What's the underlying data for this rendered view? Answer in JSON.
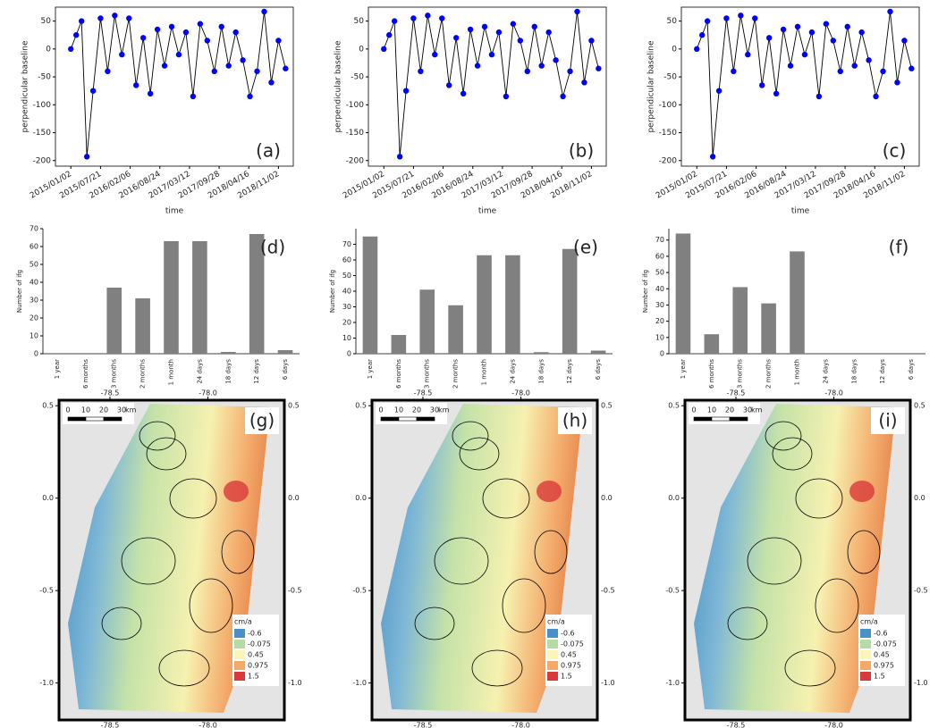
{
  "chart_data": [
    {
      "type": "scatter",
      "panel": "(a)",
      "xlabel": "time",
      "ylabel": "perpendicular baseline",
      "color": "#0000ff",
      "line_color": "#000000",
      "x": [
        "2015/01/02",
        "2015/02/07",
        "2015/03/15",
        "2015/04/20",
        "2015/06/01",
        "2015/07/21",
        "2015/09/07",
        "2015/10/25",
        "2015/12/12",
        "2016/01/29",
        "2016/03/17",
        "2016/05/04",
        "2016/06/21",
        "2016/08/08",
        "2016/09/25",
        "2016/11/12",
        "2016/12/30",
        "2017/02/16",
        "2017/04/05",
        "2017/05/23",
        "2017/07/10",
        "2017/08/27",
        "2017/10/14",
        "2017/12/01",
        "2018/01/18",
        "2018/03/07",
        "2018/04/24",
        "2018/06/11",
        "2018/07/29",
        "2018/09/15",
        "2018/11/02",
        "2018/12/20"
      ],
      "values": [
        0,
        25,
        50,
        -193,
        -75,
        55,
        -40,
        60,
        -10,
        55,
        -65,
        20,
        -80,
        35,
        -30,
        40,
        -10,
        30,
        -85,
        45,
        15,
        -40,
        40,
        -30,
        30,
        -20,
        -85,
        -40,
        67,
        -60,
        15,
        -35
      ],
      "xlim": [
        "2014/09/20",
        "2019/02/10"
      ],
      "xticks": [
        "2015/01/02",
        "2015/07/21",
        "2016/02/06",
        "2016/08/24",
        "2017/03/12",
        "2017/09/28",
        "2018/04/16",
        "2018/11/02"
      ],
      "ylim": [
        -210,
        75
      ],
      "yticks": [
        50,
        0,
        -50,
        -100,
        -150,
        -200
      ]
    },
    {
      "type": "scatter",
      "panel": "(b)",
      "xlabel": "time",
      "ylabel": "perpendicular baseline",
      "color": "#0000ff",
      "line_color": "#000000",
      "x": [
        "2015/01/02",
        "2015/02/07",
        "2015/03/15",
        "2015/04/20",
        "2015/06/01",
        "2015/07/21",
        "2015/09/07",
        "2015/10/25",
        "2015/12/12",
        "2016/01/29",
        "2016/03/17",
        "2016/05/04",
        "2016/06/21",
        "2016/08/08",
        "2016/09/25",
        "2016/11/12",
        "2016/12/30",
        "2017/02/16",
        "2017/04/05",
        "2017/05/23",
        "2017/07/10",
        "2017/08/27",
        "2017/10/14",
        "2017/12/01",
        "2018/01/18",
        "2018/03/07",
        "2018/04/24",
        "2018/06/11",
        "2018/07/29",
        "2018/09/15",
        "2018/11/02",
        "2018/12/20"
      ],
      "values": [
        0,
        25,
        50,
        -193,
        -75,
        55,
        -40,
        60,
        -10,
        55,
        -65,
        20,
        -80,
        35,
        -30,
        40,
        -10,
        30,
        -85,
        45,
        15,
        -40,
        40,
        -30,
        30,
        -20,
        -85,
        -40,
        67,
        -60,
        15,
        -35
      ],
      "xlim": [
        "2014/09/20",
        "2019/02/10"
      ],
      "xticks": [
        "2015/01/02",
        "2015/07/21",
        "2016/02/06",
        "2016/08/24",
        "2017/03/12",
        "2017/09/28",
        "2018/04/16",
        "2018/11/02"
      ],
      "ylim": [
        -210,
        75
      ],
      "yticks": [
        50,
        0,
        -50,
        -100,
        -150,
        -200
      ]
    },
    {
      "type": "scatter",
      "panel": "(c)",
      "xlabel": "time",
      "ylabel": "perpendicular baseline",
      "color": "#0000ff",
      "line_color": "#000000",
      "x": [
        "2015/01/02",
        "2015/02/07",
        "2015/03/15",
        "2015/04/20",
        "2015/06/01",
        "2015/07/21",
        "2015/09/07",
        "2015/10/25",
        "2015/12/12",
        "2016/01/29",
        "2016/03/17",
        "2016/05/04",
        "2016/06/21",
        "2016/08/08",
        "2016/09/25",
        "2016/11/12",
        "2016/12/30",
        "2017/02/16",
        "2017/04/05",
        "2017/05/23",
        "2017/07/10",
        "2017/08/27",
        "2017/10/14",
        "2017/12/01",
        "2018/01/18",
        "2018/03/07",
        "2018/04/24",
        "2018/06/11",
        "2018/07/29",
        "2018/09/15",
        "2018/11/02",
        "2018/12/20"
      ],
      "values": [
        0,
        25,
        50,
        -193,
        -75,
        55,
        -40,
        60,
        -10,
        55,
        -65,
        20,
        -80,
        35,
        -30,
        40,
        -10,
        30,
        -85,
        45,
        15,
        -40,
        40,
        -30,
        30,
        -20,
        -85,
        -40,
        67,
        -60,
        15,
        -35
      ],
      "xlim": [
        "2014/09/20",
        "2019/02/10"
      ],
      "xticks": [
        "2015/01/02",
        "2015/07/21",
        "2016/02/06",
        "2016/08/24",
        "2017/03/12",
        "2017/09/28",
        "2018/04/16",
        "2018/11/02"
      ],
      "ylim": [
        -210,
        75
      ],
      "yticks": [
        50,
        0,
        -50,
        -100,
        -150,
        -200
      ]
    },
    {
      "type": "bar",
      "panel": "(d)",
      "ylabel": "Number of ifg",
      "color": "#808080",
      "categories": [
        "1 year",
        "6 months",
        "3 months",
        "2 months",
        "1 month",
        "24 days",
        "18 days",
        "12 days",
        "6 days"
      ],
      "values": [
        0,
        0,
        37,
        31,
        63,
        63,
        1,
        67,
        2
      ],
      "ylim": [
        0,
        70
      ],
      "yticks": [
        0,
        10,
        20,
        30,
        40,
        50,
        60,
        70
      ]
    },
    {
      "type": "bar",
      "panel": "(e)",
      "ylabel": "Number of ifg",
      "color": "#808080",
      "categories": [
        "1 year",
        "6 months",
        "3 months",
        "2 months",
        "1 month",
        "24 days",
        "18 days",
        "12 days",
        "6 days"
      ],
      "values": [
        75,
        12,
        41,
        31,
        63,
        63,
        1,
        67,
        2
      ],
      "ylim": [
        0,
        80
      ],
      "yticks": [
        0,
        10,
        20,
        30,
        40,
        50,
        60,
        70
      ]
    },
    {
      "type": "bar",
      "panel": "(f)",
      "ylabel": "Number of ifg",
      "color": "#808080",
      "categories": [
        "1 year",
        "6 months",
        "3 months",
        "2 months",
        "1 month",
        "24 days",
        "18 days",
        "12 days",
        "6 days"
      ],
      "values": [
        74,
        12,
        41,
        31,
        63,
        0,
        0,
        0,
        0
      ],
      "ylim": [
        0,
        77
      ],
      "yticks": [
        0,
        10,
        20,
        30,
        40,
        50,
        60,
        70
      ]
    },
    {
      "type": "map",
      "panel": "(g)",
      "xlim": [
        -78.76,
        -77.61
      ],
      "ylim": [
        -1.2,
        0.53
      ],
      "xticks": [
        -78.5,
        {
          "value": -78,
          "label": "-78.0"
        }
      ],
      "yticks": [
        0.5,
        {
          "value": 0,
          "label": "0.0"
        },
        -0.5,
        {
          "value": -1,
          "label": "-1.0"
        }
      ],
      "scale": {
        "ticks": [
          0,
          10,
          20,
          30
        ],
        "unit": "km"
      },
      "legend_title": "cm/a",
      "legend": [
        {
          "value": -0.6,
          "color": "#4a90c8"
        },
        {
          "value": -0.075,
          "color": "#b5dca4"
        },
        {
          "value": 0.45,
          "color": "#fbf6b8"
        },
        {
          "value": 0.975,
          "color": "#f4aa66"
        },
        {
          "value": 1.5,
          "color": "#d9393a"
        }
      ]
    },
    {
      "type": "map",
      "panel": "(h)",
      "xlim": [
        -78.76,
        -77.61
      ],
      "ylim": [
        -1.2,
        0.53
      ],
      "xticks": [
        -78.5,
        {
          "value": -78,
          "label": "-78.0"
        }
      ],
      "yticks": [
        0.5,
        {
          "value": 0,
          "label": "0.0"
        },
        -0.5,
        {
          "value": -1,
          "label": "-1.0"
        }
      ],
      "scale": {
        "ticks": [
          0,
          10,
          20,
          30
        ],
        "unit": "km"
      },
      "legend_title": "cm/a",
      "legend": [
        {
          "value": -0.6,
          "color": "#4a90c8"
        },
        {
          "value": -0.075,
          "color": "#b5dca4"
        },
        {
          "value": 0.45,
          "color": "#fbf6b8"
        },
        {
          "value": 0.975,
          "color": "#f4aa66"
        },
        {
          "value": 1.5,
          "color": "#d9393a"
        }
      ]
    },
    {
      "type": "map",
      "panel": "(i)",
      "xlim": [
        -78.76,
        -77.61
      ],
      "ylim": [
        -1.2,
        0.53
      ],
      "xticks": [
        -78.5,
        {
          "value": -78,
          "label": "-78.0"
        }
      ],
      "yticks": [
        0.5,
        {
          "value": 0,
          "label": "0.0"
        },
        -0.5,
        {
          "value": -1,
          "label": "-1.0"
        }
      ],
      "scale": {
        "ticks": [
          0,
          10,
          20,
          30
        ],
        "unit": "km"
      },
      "legend_title": "cm/a",
      "legend": [
        {
          "value": -0.6,
          "color": "#4a90c8"
        },
        {
          "value": -0.075,
          "color": "#b5dca4"
        },
        {
          "value": 0.45,
          "color": "#fbf6b8"
        },
        {
          "value": 0.975,
          "color": "#f4aa66"
        },
        {
          "value": 1.5,
          "color": "#d9393a"
        }
      ]
    }
  ]
}
